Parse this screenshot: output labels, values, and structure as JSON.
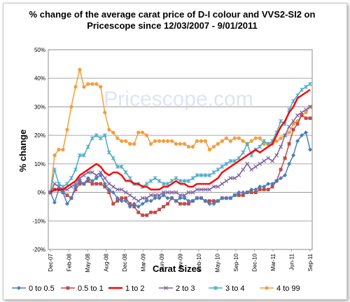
{
  "chart_data": {
    "type": "line",
    "title_lines": [
      "% change  of the average carat price of  D-I colour and VVS2-SI2  on",
      "Pricescope since 12/03/2007 - 9/01/2011"
    ],
    "xlabel": "Carat Sizes",
    "ylabel": "% change",
    "watermark": "Pricescope.com",
    "ylim": [
      -20,
      50
    ],
    "yticks": [
      "-20%",
      "-10%",
      "0%",
      "10%",
      "20%",
      "30%",
      "40%",
      "50%"
    ],
    "xticks": [
      "Dec-07",
      "Feb-08",
      "May-08",
      "Aug-08",
      "Dec-08",
      "Mar-09",
      "Jun-09",
      "Nov-09",
      "Feb-10",
      "May-10",
      "Sep-10",
      "Dec-10",
      "Mar-11",
      "Jun-11",
      "Sep-11"
    ],
    "grid": "horizontal",
    "legend_position": "bottom",
    "series": [
      {
        "name": "0 to 0.5",
        "color": "#4a7ebb",
        "marker": "diamond",
        "values": [
          0,
          -3.5,
          1,
          0,
          -4,
          -2,
          2,
          4,
          3,
          5,
          4,
          5,
          6,
          3,
          1,
          0,
          -2,
          -3,
          -3,
          -5,
          -4,
          -5,
          -4,
          -3,
          -3,
          -2,
          -2,
          -1,
          -2,
          -2,
          -3,
          -2,
          -2,
          -3,
          -3,
          -2,
          -2,
          -3,
          -4,
          -4,
          -3,
          -2,
          -2,
          -2,
          -1,
          0,
          0,
          0,
          1,
          1,
          2,
          2,
          3,
          3,
          4,
          5,
          6,
          10,
          13,
          18,
          20,
          21,
          15
        ]
      },
      {
        "name": "0.5 to 1",
        "color": "#be4b48",
        "marker": "square",
        "values": [
          0,
          1,
          1,
          0,
          -1,
          -2,
          1,
          3,
          3,
          4,
          3,
          3,
          3,
          2,
          0,
          -4,
          -3,
          -2,
          -2,
          -4,
          -5,
          -7,
          -8,
          -8,
          -7,
          -7,
          -6,
          -5,
          -4,
          -2,
          -3,
          -4,
          -4,
          -4,
          -3,
          -2,
          -2,
          -3,
          -3,
          -3,
          -3,
          -2,
          -2,
          -2,
          -1,
          -1,
          -1,
          0,
          0,
          0,
          1,
          1,
          1,
          2,
          4,
          8,
          12,
          17,
          22,
          24,
          27,
          26,
          26
        ]
      },
      {
        "name": "1 to 2",
        "color": "#ff0000",
        "marker": "none",
        "values": [
          0,
          1,
          1,
          1,
          2,
          3,
          4,
          6,
          7,
          8,
          9,
          10,
          9,
          7,
          6,
          7,
          7,
          6,
          4,
          4,
          3,
          3,
          2,
          2,
          1,
          1,
          1,
          2,
          2,
          3,
          4,
          3,
          3,
          2,
          2,
          3,
          3,
          3,
          3,
          4,
          5,
          7,
          8,
          9,
          10,
          11,
          12,
          13,
          14,
          15,
          14,
          15,
          16,
          17,
          20,
          23,
          25,
          28,
          30,
          33,
          34,
          35,
          36
        ]
      },
      {
        "name": "2 to 3",
        "color": "#7d60a0",
        "marker": "x",
        "values": [
          0,
          3,
          2,
          1,
          1,
          2,
          3,
          5,
          6,
          7,
          7,
          6,
          7,
          5,
          3,
          2,
          1,
          1,
          0,
          -1,
          -2,
          -3,
          -2,
          -2,
          -1,
          -1,
          -1,
          0,
          0,
          0,
          0,
          -1,
          -1,
          0,
          0,
          1,
          1,
          1,
          1,
          2,
          2,
          3,
          4,
          5,
          5,
          6,
          8,
          10,
          8,
          9,
          10,
          11,
          12,
          11,
          13,
          16,
          20,
          23,
          25,
          27,
          28,
          29,
          30
        ]
      },
      {
        "name": "3 to 4",
        "color": "#4bacc6",
        "marker": "star",
        "values": [
          0,
          8,
          3,
          2,
          3,
          5,
          8,
          13,
          13,
          16,
          19,
          20,
          19,
          20,
          14,
          12,
          9,
          9,
          7,
          5,
          3,
          3,
          2,
          3,
          4,
          5,
          4,
          3,
          3,
          4,
          5,
          4,
          4,
          4,
          5,
          6,
          6,
          6,
          6,
          7,
          8,
          9,
          10,
          11,
          11,
          12,
          14,
          17,
          13,
          15,
          16,
          18,
          17,
          18,
          21,
          25,
          24,
          29,
          32,
          34,
          36,
          37,
          38
        ]
      },
      {
        "name": "4 to 99",
        "color": "#f59d3d",
        "marker": "circle",
        "values": [
          0,
          13,
          15,
          15,
          22,
          30,
          37,
          43,
          37,
          38,
          38,
          38,
          37,
          28,
          22,
          21,
          19,
          18,
          18,
          17,
          17,
          21,
          21,
          20,
          17,
          18,
          18,
          18,
          18,
          18,
          17,
          17,
          17,
          16,
          16,
          18,
          18,
          18,
          15,
          16,
          17,
          18,
          19,
          18,
          19,
          19,
          18,
          17,
          18,
          19,
          19,
          17,
          17,
          17,
          18,
          19,
          20,
          21,
          24,
          25,
          27,
          28,
          30
        ]
      }
    ]
  }
}
